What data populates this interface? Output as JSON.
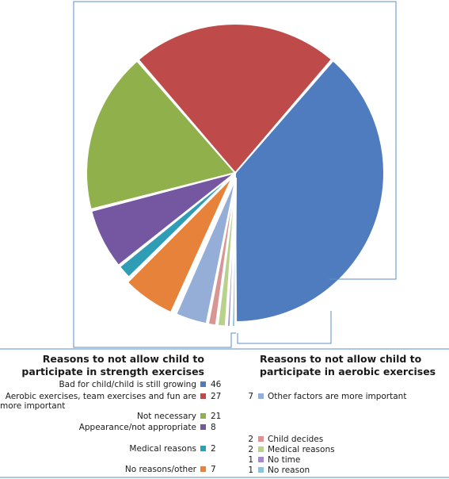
{
  "chart_data": {
    "type": "pie",
    "title": "",
    "groups": [
      {
        "heading": "Reasons to not allow child to participate in strength exercises",
        "slices": [
          {
            "label": "Bad for child/child is still growing",
            "value": 46,
            "color": "#4f7cbf"
          },
          {
            "label": "Aerobic exercises, team exercises and fun are more important",
            "value": 27,
            "color": "#bf4a4a"
          },
          {
            "label": "Not necessary",
            "value": 21,
            "color": "#8fb04a"
          },
          {
            "label": "Appearance/not appropriate",
            "value": 8,
            "color": "#7457a0"
          },
          {
            "label": "Medical reasons",
            "value": 2,
            "color": "#2f9db5"
          },
          {
            "label": "No reasons/other",
            "value": 7,
            "color": "#e6823a"
          }
        ]
      },
      {
        "heading": "Reasons to not allow child to participate in aerobic exercises",
        "slices": [
          {
            "label": "Other factors are more important",
            "value": 7,
            "color": "#94aed8"
          },
          {
            "label": "Child decides",
            "value": 2,
            "color": "#d99594"
          },
          {
            "label": "Medical reasons",
            "value": 2,
            "color": "#b8d28c"
          },
          {
            "label": "No time",
            "value": 1,
            "color": "#a38cc4"
          },
          {
            "label": "No reason",
            "value": 1,
            "color": "#86c6de"
          }
        ]
      }
    ],
    "legend_placement": "bottom"
  }
}
